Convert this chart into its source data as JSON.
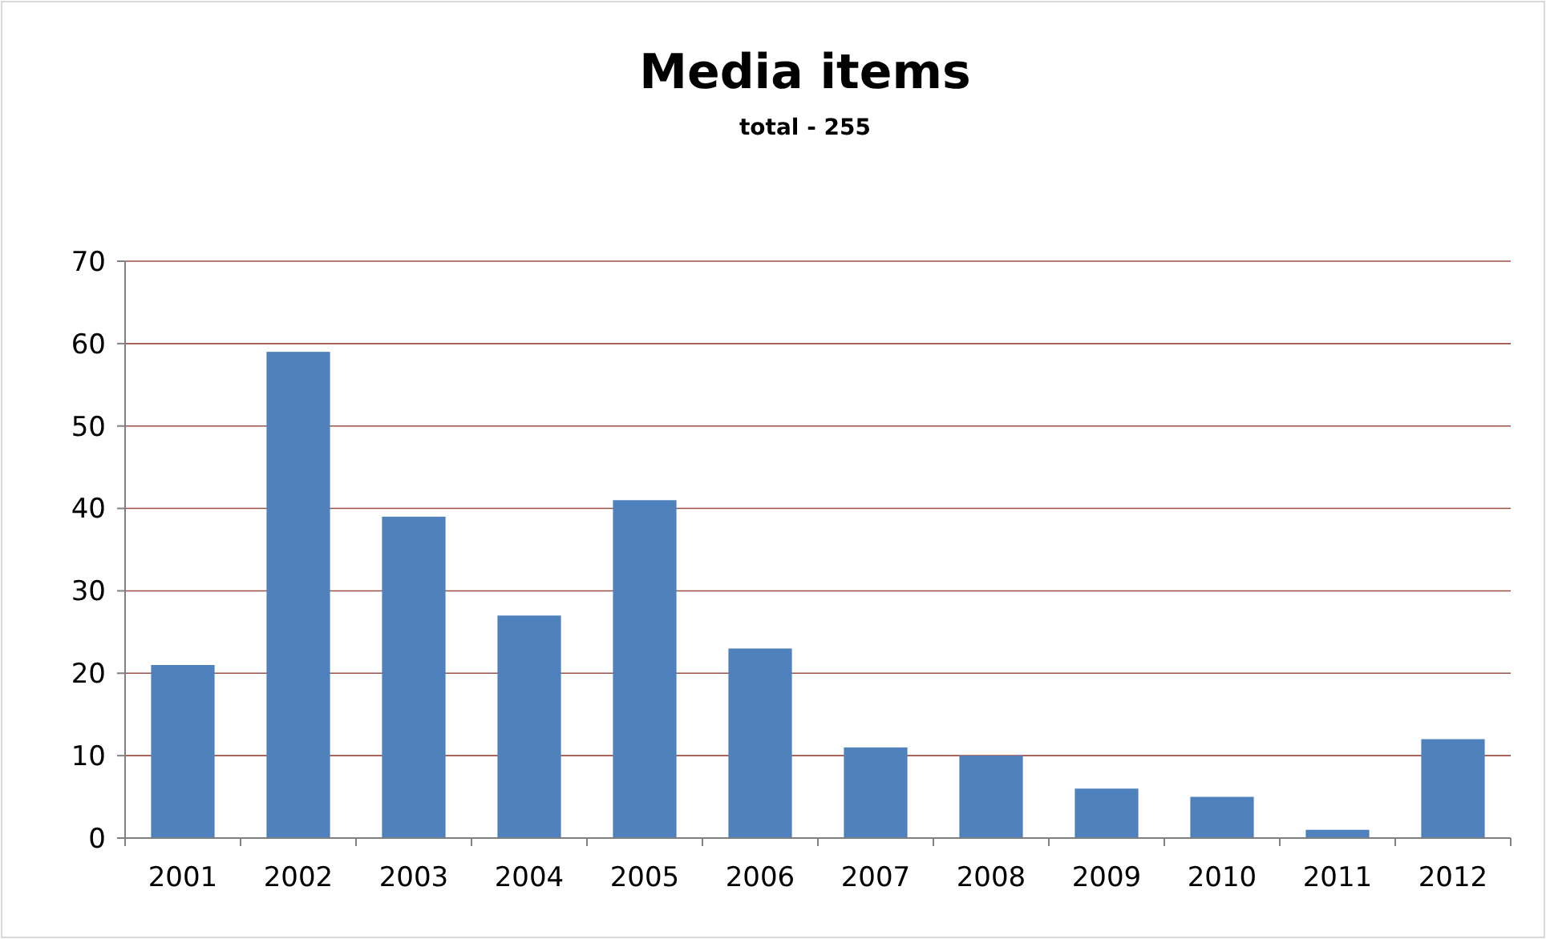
{
  "chart_data": {
    "type": "bar",
    "title": "Media items",
    "subtitle": "total - 255",
    "categories": [
      "2001",
      "2002",
      "2003",
      "2004",
      "2005",
      "2006",
      "2007",
      "2008",
      "2009",
      "2010",
      "2011",
      "2012"
    ],
    "values": [
      21,
      59,
      39,
      27,
      41,
      23,
      11,
      10,
      6,
      5,
      1,
      12
    ],
    "color": "#4f81bd",
    "ylim": [
      0,
      70
    ],
    "yticks": [
      0,
      10,
      20,
      30,
      40,
      50,
      60,
      70
    ],
    "grid": "y"
  }
}
